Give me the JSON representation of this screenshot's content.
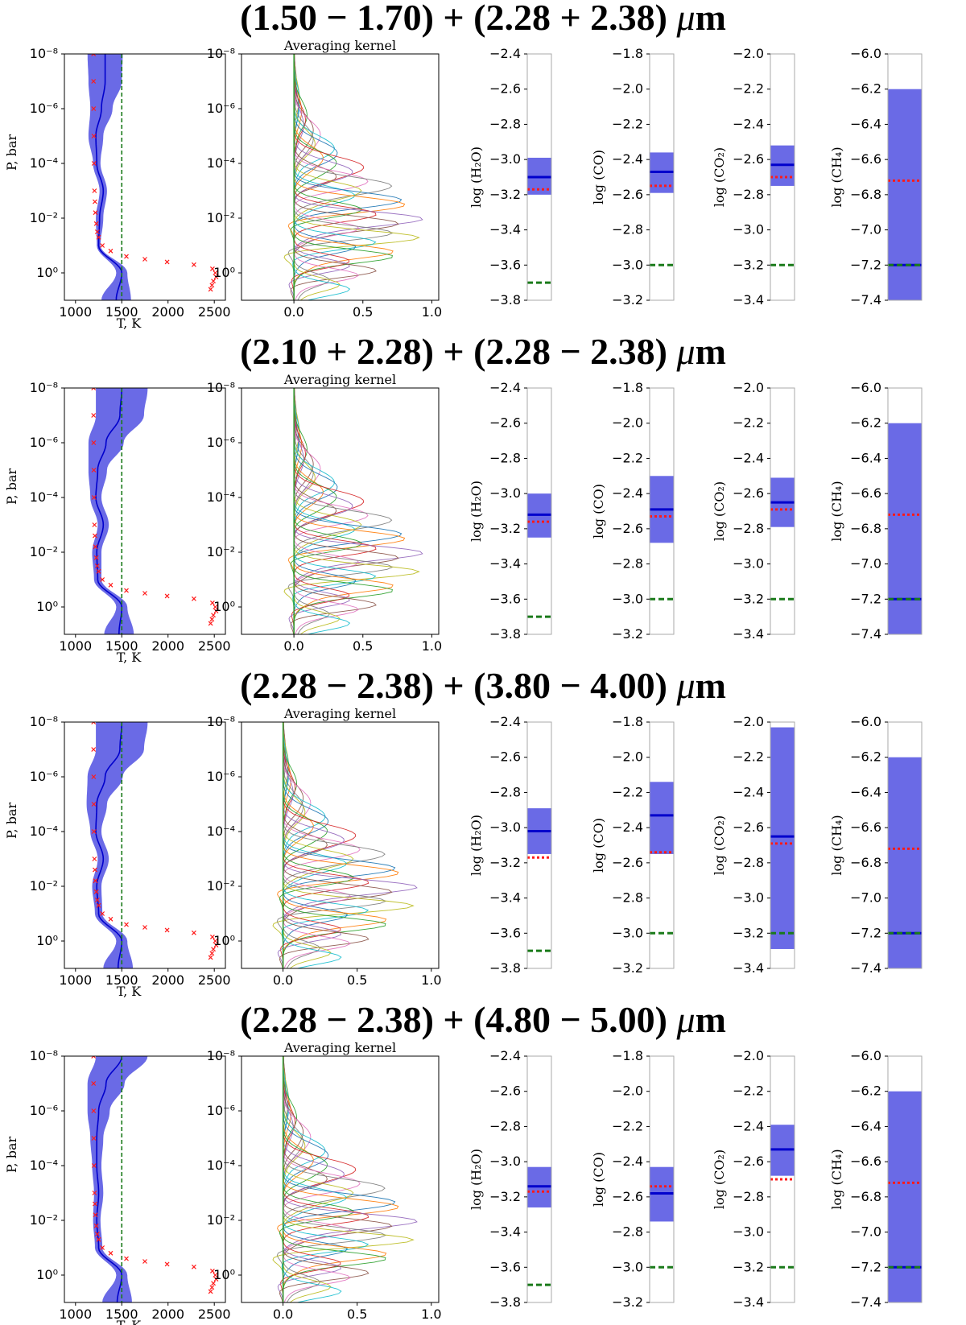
{
  "figure_label": "Retrieval results for four wavelength-range combinations",
  "colors": {
    "band": "#6a6ae6",
    "mean": "#0000cc",
    "truth": "#ff1a1a",
    "initial": "#1a7a1a",
    "kernel_palette": [
      "#1f77b4",
      "#ff7f0e",
      "#2ca02c",
      "#d62728",
      "#9467bd",
      "#8c564b",
      "#e377c2",
      "#7f7f7f",
      "#bcbd22",
      "#17becf"
    ]
  },
  "chart_data": [
    {
      "type": "composite",
      "title_parts": [
        "(1.50 − 1.70) + (2.28 + 2.38) ",
        "μ",
        "m"
      ],
      "temperature_profile": {
        "type": "line",
        "xlabel": "T, K",
        "ylabel": "P, bar",
        "xlim": [
          880,
          2620
        ],
        "ylim_log10": [
          -8,
          1
        ],
        "xticks": [
          "1000",
          "1500",
          "2000",
          "2500"
        ],
        "yticks": [
          "10⁻⁸",
          "10⁻⁶",
          "10⁻⁴",
          "10⁻²",
          "10⁰"
        ],
        "retrieved_T": [
          1320,
          1320,
          1280,
          1220,
          1230,
          1300,
          1260,
          1250,
          1500,
          1440
        ],
        "sigma_T": [
          190,
          180,
          120,
          80,
          40,
          40,
          40,
          20,
          60,
          160
        ],
        "initial_T": 1500,
        "truth_points": [
          [
            1195,
            -8
          ],
          [
            1195,
            -7
          ],
          [
            1196,
            -6
          ],
          [
            1198,
            -5
          ],
          [
            1200,
            -4
          ],
          [
            1205,
            -3
          ],
          [
            1210,
            -2.6
          ],
          [
            1215,
            -2.2
          ],
          [
            1225,
            -1.8
          ],
          [
            1235,
            -1.5
          ],
          [
            1250,
            -1.3
          ],
          [
            1290,
            -1.0
          ],
          [
            1380,
            -0.8
          ],
          [
            1550,
            -0.6
          ],
          [
            1750,
            -0.5
          ],
          [
            1990,
            -0.4
          ],
          [
            2280,
            -0.3
          ],
          [
            2480,
            -0.15
          ],
          [
            2510,
            0.0
          ],
          [
            2520,
            0.15
          ],
          [
            2490,
            0.3
          ],
          [
            2475,
            0.45
          ],
          [
            2460,
            0.6
          ]
        ]
      },
      "averaging_kernel": {
        "title": "Averaging kernel",
        "xlim": [
          -0.38,
          1.05
        ],
        "xticks": [
          "0.0",
          "0.5",
          "1.0"
        ],
        "yticks": [
          "10⁻⁸",
          "10⁻⁶",
          "10⁻⁴",
          "10⁻²",
          "10⁰"
        ],
        "peak_scale": 0.95,
        "n_curves": 50
      },
      "abundances": [
        {
          "species": "H₂O",
          "ylabel": "log (H₂O)",
          "ylim": [
            -3.8,
            -2.4
          ],
          "yticks": [
            "−2.4",
            "−2.6",
            "−2.8",
            "−3.0",
            "−3.2",
            "−3.4",
            "−3.6",
            "−3.8"
          ],
          "band": [
            -3.2,
            -2.99
          ],
          "retrieved": -3.1,
          "truth": -3.17,
          "initial": -3.7
        },
        {
          "species": "CO",
          "ylabel": "log (CO)",
          "ylim": [
            -3.2,
            -1.8
          ],
          "yticks": [
            "−1.8",
            "−2.0",
            "−2.2",
            "−2.4",
            "−2.6",
            "−2.8",
            "−3.0",
            "−3.2"
          ],
          "band": [
            -2.59,
            -2.36
          ],
          "retrieved": -2.47,
          "truth": -2.55,
          "initial": -3.0
        },
        {
          "species": "CO₂",
          "ylabel": "log (CO₂)",
          "ylim": [
            -3.4,
            -2.0
          ],
          "yticks": [
            "−2.0",
            "−2.2",
            "−2.4",
            "−2.6",
            "−2.8",
            "−3.0",
            "−3.2",
            "−3.4"
          ],
          "band": [
            -2.75,
            -2.52
          ],
          "retrieved": -2.63,
          "truth": -2.7,
          "initial": -3.2
        },
        {
          "species": "CH₄",
          "ylabel": "log (CH₄)",
          "ylim": [
            -7.4,
            -6.0
          ],
          "yticks": [
            "−6.0",
            "−6.2",
            "−6.4",
            "−6.6",
            "−6.8",
            "−7.0",
            "−7.2",
            "−7.4"
          ],
          "band": [
            -7.4,
            -6.2
          ],
          "retrieved": -7.2,
          "truth": -6.72,
          "initial": -7.2
        }
      ]
    },
    {
      "type": "composite",
      "title_parts": [
        "(2.10 + 2.28) + (2.28 − 2.38) ",
        "μ",
        "m"
      ],
      "temperature_profile": {
        "type": "line",
        "xlabel": "T, K",
        "ylabel": "P, bar",
        "xlim": [
          880,
          2620
        ],
        "ylim_log10": [
          -8,
          1
        ],
        "xticks": [
          "1000",
          "1500",
          "2000",
          "2500"
        ],
        "yticks": [
          "10⁻⁸",
          "10⁻⁶",
          "10⁻⁴",
          "10⁻²",
          "10⁰"
        ],
        "retrieved_T": [
          1500,
          1480,
          1330,
          1240,
          1220,
          1300,
          1230,
          1240,
          1500,
          1470
        ],
        "sigma_T": [
          280,
          260,
          190,
          100,
          60,
          60,
          50,
          40,
          60,
          160
        ],
        "initial_T": 1500,
        "truth_points": [
          [
            1195,
            -8
          ],
          [
            1195,
            -7
          ],
          [
            1196,
            -6
          ],
          [
            1198,
            -5
          ],
          [
            1200,
            -4
          ],
          [
            1205,
            -3
          ],
          [
            1210,
            -2.6
          ],
          [
            1215,
            -2.2
          ],
          [
            1225,
            -1.8
          ],
          [
            1235,
            -1.5
          ],
          [
            1250,
            -1.3
          ],
          [
            1290,
            -1.0
          ],
          [
            1380,
            -0.8
          ],
          [
            1550,
            -0.6
          ],
          [
            1750,
            -0.5
          ],
          [
            1990,
            -0.4
          ],
          [
            2280,
            -0.3
          ],
          [
            2480,
            -0.15
          ],
          [
            2510,
            0.0
          ],
          [
            2520,
            0.15
          ],
          [
            2490,
            0.3
          ],
          [
            2475,
            0.45
          ],
          [
            2460,
            0.6
          ]
        ]
      },
      "averaging_kernel": {
        "title": "Averaging kernel",
        "xlim": [
          -0.38,
          1.05
        ],
        "xticks": [
          "0.0",
          "0.5",
          "1.0"
        ],
        "yticks": [
          "10⁻⁸",
          "10⁻⁶",
          "10⁻⁴",
          "10⁻²",
          "10⁰"
        ],
        "peak_scale": 0.95,
        "n_curves": 50
      },
      "abundances": [
        {
          "species": "H₂O",
          "ylabel": "log (H₂O)",
          "ylim": [
            -3.8,
            -2.4
          ],
          "yticks": [
            "−2.4",
            "−2.6",
            "−2.8",
            "−3.0",
            "−3.2",
            "−3.4",
            "−3.6",
            "−3.8"
          ],
          "band": [
            -3.25,
            -3.0
          ],
          "retrieved": -3.12,
          "truth": -3.16,
          "initial": -3.7
        },
        {
          "species": "CO",
          "ylabel": "log (CO)",
          "ylim": [
            -3.2,
            -1.8
          ],
          "yticks": [
            "−1.8",
            "−2.0",
            "−2.2",
            "−2.4",
            "−2.6",
            "−2.8",
            "−3.0",
            "−3.2"
          ],
          "band": [
            -2.68,
            -2.3
          ],
          "retrieved": -2.49,
          "truth": -2.53,
          "initial": -3.0
        },
        {
          "species": "CO₂",
          "ylabel": "log (CO₂)",
          "ylim": [
            -3.4,
            -2.0
          ],
          "yticks": [
            "−2.0",
            "−2.2",
            "−2.4",
            "−2.6",
            "−2.8",
            "−3.0",
            "−3.2",
            "−3.4"
          ],
          "band": [
            -2.79,
            -2.51
          ],
          "retrieved": -2.65,
          "truth": -2.69,
          "initial": -3.2
        },
        {
          "species": "CH₄",
          "ylabel": "log (CH₄)",
          "ylim": [
            -7.4,
            -6.0
          ],
          "yticks": [
            "−6.0",
            "−6.2",
            "−6.4",
            "−6.6",
            "−6.8",
            "−7.0",
            "−7.2",
            "−7.4"
          ],
          "band": [
            -7.4,
            -6.2
          ],
          "retrieved": -7.2,
          "truth": -6.72,
          "initial": -7.2
        }
      ]
    },
    {
      "type": "composite",
      "title_parts": [
        "(2.28 − 2.38) + (3.80 − 4.00) ",
        "μ",
        "m"
      ],
      "temperature_profile": {
        "type": "line",
        "xlabel": "T, K",
        "ylabel": "P, bar",
        "xlim": [
          880,
          2620
        ],
        "ylim_log10": [
          -8,
          1
        ],
        "xticks": [
          "1000",
          "1500",
          "2000",
          "2500"
        ],
        "yticks": [
          "10⁻⁸",
          "10⁻⁶",
          "10⁻⁴",
          "10⁻²",
          "10⁰"
        ],
        "retrieved_T": [
          1500,
          1480,
          1320,
          1230,
          1220,
          1300,
          1230,
          1250,
          1500,
          1460
        ],
        "sigma_T": [
          280,
          260,
          190,
          110,
          60,
          60,
          50,
          40,
          60,
          160
        ],
        "initial_T": 1500,
        "truth_points": [
          [
            1195,
            -8
          ],
          [
            1195,
            -7
          ],
          [
            1196,
            -6
          ],
          [
            1198,
            -5
          ],
          [
            1200,
            -4
          ],
          [
            1205,
            -3
          ],
          [
            1210,
            -2.6
          ],
          [
            1215,
            -2.2
          ],
          [
            1225,
            -1.8
          ],
          [
            1235,
            -1.5
          ],
          [
            1250,
            -1.3
          ],
          [
            1290,
            -1.0
          ],
          [
            1380,
            -0.8
          ],
          [
            1550,
            -0.6
          ],
          [
            1750,
            -0.5
          ],
          [
            1990,
            -0.4
          ],
          [
            2280,
            -0.3
          ],
          [
            2480,
            -0.15
          ],
          [
            2510,
            0.0
          ],
          [
            2520,
            0.15
          ],
          [
            2490,
            0.3
          ],
          [
            2475,
            0.45
          ],
          [
            2460,
            0.6
          ]
        ]
      },
      "averaging_kernel": {
        "title": "Averaging kernel",
        "xlim": [
          -0.28,
          1.05
        ],
        "xticks": [
          "0.0",
          "0.5",
          "1.0"
        ],
        "yticks": [
          "10⁻⁸",
          "10⁻⁶",
          "10⁻⁴",
          "10⁻²",
          "10⁰"
        ],
        "peak_scale": 0.92,
        "n_curves": 50
      },
      "abundances": [
        {
          "species": "H₂O",
          "ylabel": "log (H₂O)",
          "ylim": [
            -3.8,
            -2.4
          ],
          "yticks": [
            "−2.4",
            "−2.6",
            "−2.8",
            "−3.0",
            "−3.2",
            "−3.4",
            "−3.6",
            "−3.8"
          ],
          "band": [
            -3.15,
            -2.89
          ],
          "retrieved": -3.02,
          "truth": -3.17,
          "initial": -3.7
        },
        {
          "species": "CO",
          "ylabel": "log (CO)",
          "ylim": [
            -3.2,
            -1.8
          ],
          "yticks": [
            "−1.8",
            "−2.0",
            "−2.2",
            "−2.4",
            "−2.6",
            "−2.8",
            "−3.0",
            "−3.2"
          ],
          "band": [
            -2.55,
            -2.14
          ],
          "retrieved": -2.33,
          "truth": -2.54,
          "initial": -3.0
        },
        {
          "species": "CO₂",
          "ylabel": "log (CO₂)",
          "ylim": [
            -3.4,
            -2.0
          ],
          "yticks": [
            "−2.0",
            "−2.2",
            "−2.4",
            "−2.6",
            "−2.8",
            "−3.0",
            "−3.2",
            "−3.4"
          ],
          "band": [
            -3.29,
            -2.03
          ],
          "retrieved": -2.65,
          "truth": -2.69,
          "initial": -3.2
        },
        {
          "species": "CH₄",
          "ylabel": "log (CH₄)",
          "ylim": [
            -7.4,
            -6.0
          ],
          "yticks": [
            "−6.0",
            "−6.2",
            "−6.4",
            "−6.6",
            "−6.8",
            "−7.0",
            "−7.2",
            "−7.4"
          ],
          "band": [
            -7.4,
            -6.2
          ],
          "retrieved": -7.2,
          "truth": -6.72,
          "initial": -7.2
        }
      ]
    },
    {
      "type": "composite",
      "title_parts": [
        "(2.28 − 2.38) + (4.80 − 5.00) ",
        "μ",
        "m"
      ],
      "temperature_profile": {
        "type": "line",
        "xlabel": "T, K",
        "ylabel": "P, bar",
        "xlim": [
          880,
          2620
        ],
        "ylim_log10": [
          -8,
          1
        ],
        "xticks": [
          "1000",
          "1500",
          "2000",
          "2500"
        ],
        "yticks": [
          "10⁻⁸",
          "10⁻⁶",
          "10⁻⁴",
          "10⁻²",
          "10⁰"
        ],
        "retrieved_T": [
          1500,
          1330,
          1250,
          1230,
          1230,
          1250,
          1230,
          1250,
          1500,
          1450
        ],
        "sigma_T": [
          280,
          200,
          120,
          70,
          50,
          50,
          40,
          40,
          60,
          160
        ],
        "initial_T": 1500,
        "truth_points": [
          [
            1195,
            -8
          ],
          [
            1195,
            -7
          ],
          [
            1196,
            -6
          ],
          [
            1198,
            -5
          ],
          [
            1200,
            -4
          ],
          [
            1205,
            -3
          ],
          [
            1210,
            -2.6
          ],
          [
            1215,
            -2.2
          ],
          [
            1225,
            -1.8
          ],
          [
            1235,
            -1.5
          ],
          [
            1250,
            -1.3
          ],
          [
            1290,
            -1.0
          ],
          [
            1380,
            -0.8
          ],
          [
            1550,
            -0.6
          ],
          [
            1750,
            -0.5
          ],
          [
            1990,
            -0.4
          ],
          [
            2280,
            -0.3
          ],
          [
            2480,
            -0.15
          ],
          [
            2510,
            0.0
          ],
          [
            2520,
            0.15
          ],
          [
            2490,
            0.3
          ],
          [
            2475,
            0.45
          ],
          [
            2460,
            0.6
          ]
        ]
      },
      "averaging_kernel": {
        "title": "Averaging kernel",
        "xlim": [
          -0.28,
          1.05
        ],
        "xticks": [
          "0.0",
          "0.5",
          "1.0"
        ],
        "yticks": [
          "10⁻⁸",
          "10⁻⁶",
          "10⁻⁴",
          "10⁻²",
          "10⁰"
        ],
        "peak_scale": 0.92,
        "n_curves": 50
      },
      "abundances": [
        {
          "species": "H₂O",
          "ylabel": "log (H₂O)",
          "ylim": [
            -3.8,
            -2.4
          ],
          "yticks": [
            "−2.4",
            "−2.6",
            "−2.8",
            "−3.0",
            "−3.2",
            "−3.4",
            "−3.6",
            "−3.8"
          ],
          "band": [
            -3.26,
            -3.03
          ],
          "retrieved": -3.14,
          "truth": -3.17,
          "initial": -3.7
        },
        {
          "species": "CO",
          "ylabel": "log (CO)",
          "ylim": [
            -3.2,
            -1.8
          ],
          "yticks": [
            "−1.8",
            "−2.0",
            "−2.2",
            "−2.4",
            "−2.6",
            "−2.8",
            "−3.0",
            "−3.2"
          ],
          "band": [
            -2.74,
            -2.43
          ],
          "retrieved": -2.58,
          "truth": -2.54,
          "initial": -3.0
        },
        {
          "species": "CO₂",
          "ylabel": "log (CO₂)",
          "ylim": [
            -3.4,
            -2.0
          ],
          "yticks": [
            "−2.0",
            "−2.2",
            "−2.4",
            "−2.6",
            "−2.8",
            "−3.0",
            "−3.2",
            "−3.4"
          ],
          "band": [
            -2.68,
            -2.39
          ],
          "retrieved": -2.53,
          "truth": -2.7,
          "initial": -3.2
        },
        {
          "species": "CH₄",
          "ylabel": "log (CH₄)",
          "ylim": [
            -7.4,
            -6.0
          ],
          "yticks": [
            "−6.0",
            "−6.2",
            "−6.4",
            "−6.6",
            "−6.8",
            "−7.0",
            "−7.2",
            "−7.4"
          ],
          "band": [
            -7.4,
            -6.2
          ],
          "retrieved": -7.2,
          "truth": -6.72,
          "initial": -7.2
        }
      ]
    }
  ]
}
